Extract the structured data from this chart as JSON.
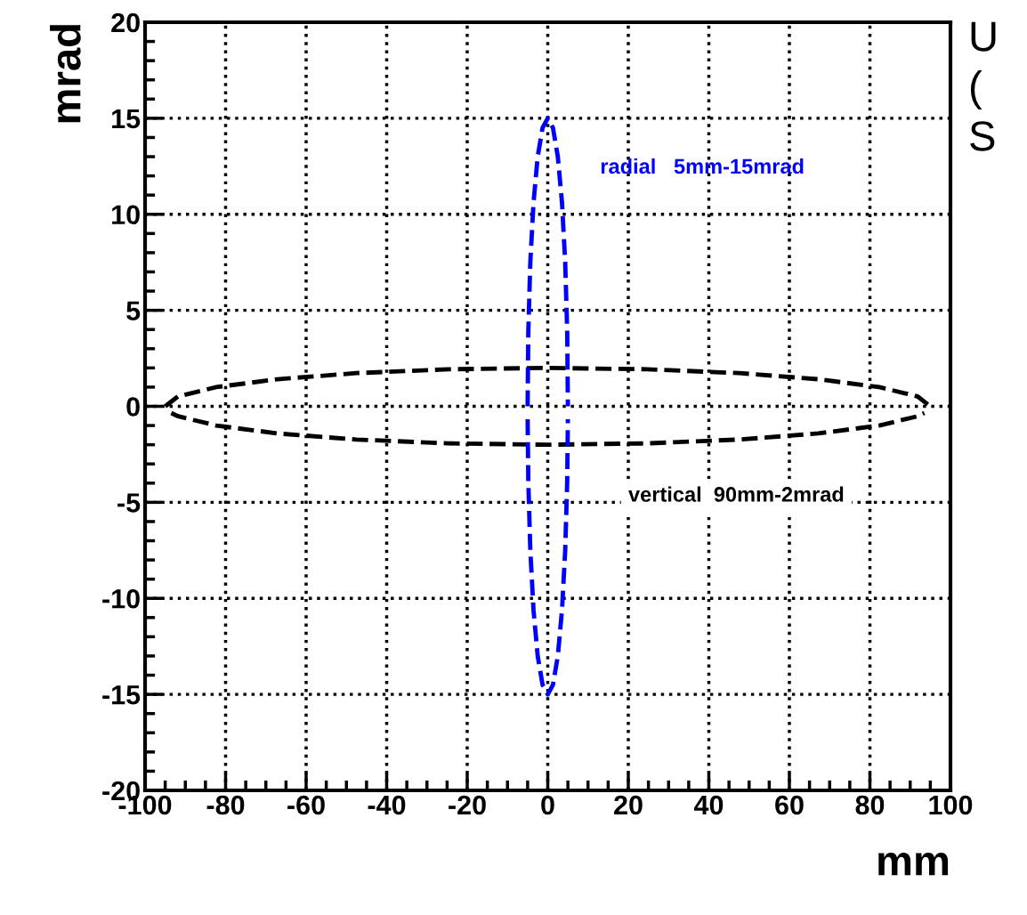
{
  "chart_data": {
    "type": "line",
    "xlabel": "mm",
    "ylabel": "mrad",
    "xlim": [
      -100,
      100
    ],
    "xticks": [
      -100,
      -80,
      -60,
      -40,
      -20,
      0,
      20,
      40,
      60,
      80,
      100
    ],
    "ylim": [
      -20,
      20
    ],
    "yticks": [
      -20,
      -15,
      -10,
      -5,
      0,
      5,
      10,
      15,
      20
    ],
    "grid": true,
    "line_style": "dashed",
    "marker": "none",
    "series": [
      {
        "name": "vertical  90mm-2mrad",
        "color": "#000000",
        "x": [
          -95,
          -91.8,
          -82.3,
          -67.2,
          -47.5,
          -24.6,
          0,
          24.6,
          47.5,
          67.2,
          82.3,
          91.8,
          95
        ],
        "values": [
          0,
          0.52,
          1.0,
          1.41,
          1.73,
          1.93,
          2,
          1.93,
          1.73,
          1.41,
          1.0,
          0.52,
          0
        ]
      },
      {
        "color": "#000000",
        "x": [
          -93.5,
          -91.8,
          -82.3,
          -67.2,
          -47.5,
          -24.6,
          0,
          24.6,
          47.5,
          67.2,
          82.3,
          91.8,
          93.5
        ],
        "values": [
          -0.35,
          -0.52,
          -1.0,
          -1.41,
          -1.73,
          -1.93,
          -2,
          -1.93,
          -1.73,
          -1.41,
          -1.0,
          -0.52,
          -0.35
        ]
      },
      {
        "name": "radial   5mm-15mrad",
        "color": "#0000ff",
        "x": [
          -5,
          -4.83,
          -4.33,
          -3.54,
          -2.5,
          -1.29,
          0,
          1.29,
          2.5,
          3.54,
          4.33,
          4.83,
          5
        ],
        "values": [
          0,
          3.9,
          7.5,
          10.6,
          13.0,
          14.5,
          15,
          14.5,
          13.0,
          10.6,
          7.5,
          3.9,
          0
        ]
      },
      {
        "color": "#0000ff",
        "x": [
          -4.995,
          -4.83,
          -4.33,
          -3.54,
          -2.5,
          -1.29,
          0,
          1.29,
          2.5,
          3.54,
          4.33,
          4.83,
          4.995
        ],
        "values": [
          -0.67,
          -3.9,
          -7.5,
          -10.6,
          -13.0,
          -14.5,
          -15,
          -14.5,
          -13.0,
          -10.6,
          -7.5,
          -3.9,
          -0.67
        ]
      }
    ],
    "annotations": [
      "U",
      "(",
      "S"
    ]
  }
}
